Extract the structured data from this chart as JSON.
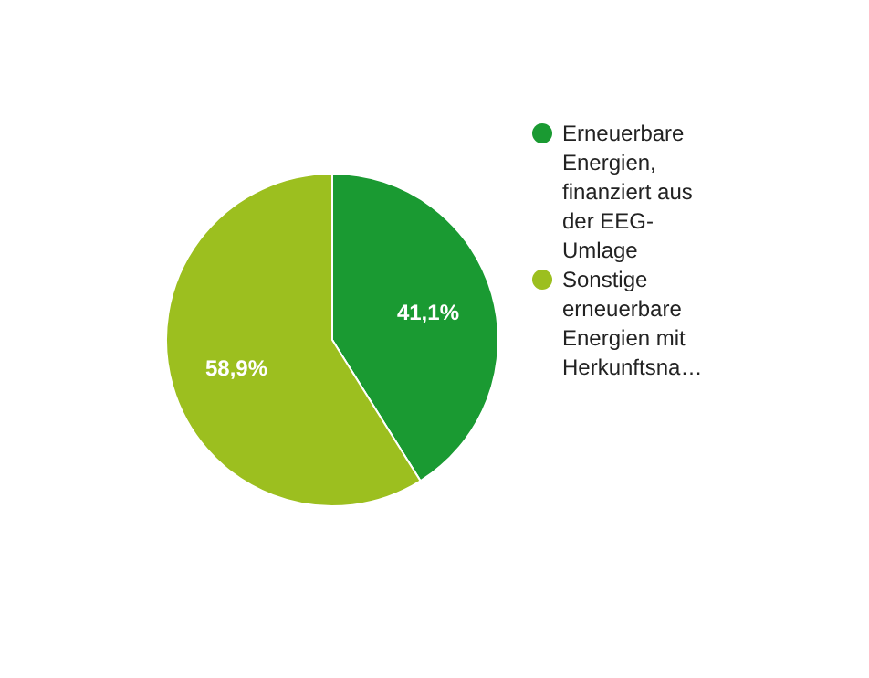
{
  "chart_data": {
    "type": "pie",
    "categories": [
      "Erneuerbare Energien, finanziert aus der EEG-Umlage",
      "Sonstige erneuerbare Energien mit Herkunftsna…"
    ],
    "values": [
      41.1,
      58.9
    ],
    "colors": [
      "#1a9a32",
      "#9cbf1f"
    ],
    "value_labels": [
      "41,1%",
      "58,9%"
    ],
    "legend": "right"
  }
}
